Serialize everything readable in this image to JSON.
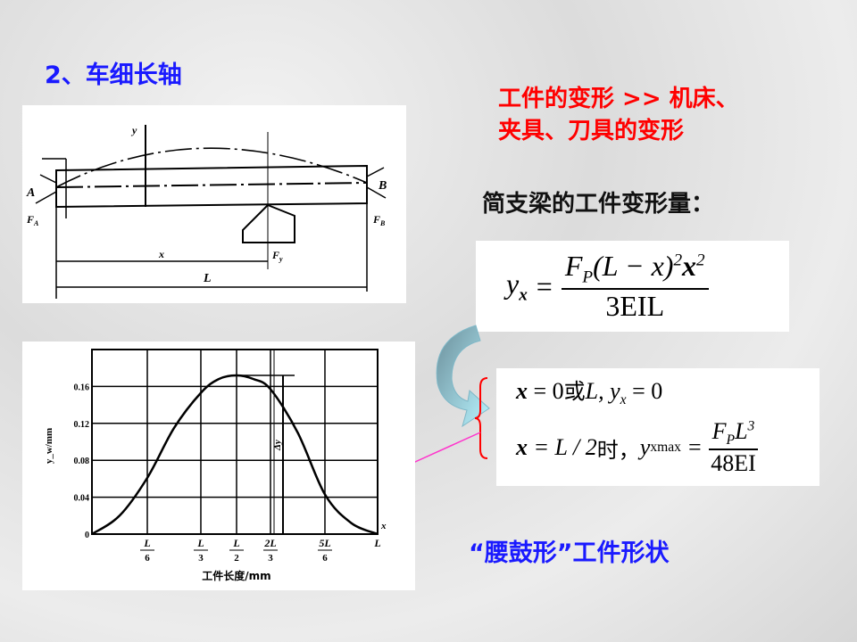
{
  "title": "2、车细长轴",
  "deformation_note": {
    "line1": "工件的变形 >> 机床、",
    "line2": "夹具、刀具的变形"
  },
  "subtitle": "简支梁的工件变形量：",
  "formula": {
    "lhs": "y",
    "lhs_sub": "x",
    "eq": "=",
    "numerator": "F",
    "num_sub": "P",
    "num_mid": "(L − x)",
    "sup1": "2",
    "num_x": "x",
    "sup2": "2",
    "denominator": "3EIL"
  },
  "conditions": {
    "line1": {
      "x": "x",
      "eq1": "= 0",
      "cn": "或",
      "rest": "L, y",
      "sub": "x",
      "eq2": "= 0"
    },
    "line2": {
      "x": "x",
      "eq1": "= L / 2",
      "cn": "时，",
      "y": "y",
      "sub": "xmax",
      "eq": "=",
      "numerator": "F",
      "num_sub": "P",
      "num_L": "L",
      "num_sup": "3",
      "denominator": "48EI"
    }
  },
  "shape_caption": "“腰鼓形”工件形状",
  "beam_diagram": {
    "label_a": "A",
    "label_b": "B",
    "label_fa": "F",
    "label_fa_sub": "A",
    "label_fb": "F",
    "label_fb_sub": "B",
    "label_fy": "F",
    "label_fy_sub": "y",
    "label_x": "x",
    "label_l": "L",
    "label_y": "y"
  },
  "colors": {
    "title": "#1a1aff",
    "note": "#ff0000",
    "arrow": "#ff33cc",
    "brace": "#ff0000"
  },
  "chart_data": {
    "type": "line",
    "xlabel": "工件长度/mm",
    "ylabel": "y_w/mm",
    "x_axis_end_label": "x",
    "annotation": "Δy",
    "x_ticks": [
      {
        "num": "L",
        "den": "6",
        "value": 0.1667
      },
      {
        "num": "L",
        "den": "3",
        "value": 0.3333
      },
      {
        "num": "L",
        "den": "2",
        "value": 0.5
      },
      {
        "num": "2L",
        "den": "3",
        "value": 0.6667
      },
      {
        "num": "5L",
        "den": "6",
        "value": 0.8333
      },
      {
        "num": "L",
        "den": "",
        "value": 1
      }
    ],
    "y_ticks": [
      "0",
      "0.04",
      "0.08",
      "0.12",
      "0.16"
    ],
    "ylim": [
      0,
      0.2
    ],
    "grid": true,
    "series": [
      {
        "x": [
          0,
          0.0833,
          0.1667,
          0.25,
          0.3333,
          0.4167,
          0.5,
          0.5833,
          0.6667,
          0.75,
          0.8333,
          0.9167,
          1
        ],
        "y": [
          0,
          0.02,
          0.061,
          0.115,
          0.153,
          0.168,
          0.172,
          0.168,
          0.157,
          0.11,
          0.043,
          0.012,
          0
        ]
      }
    ]
  }
}
